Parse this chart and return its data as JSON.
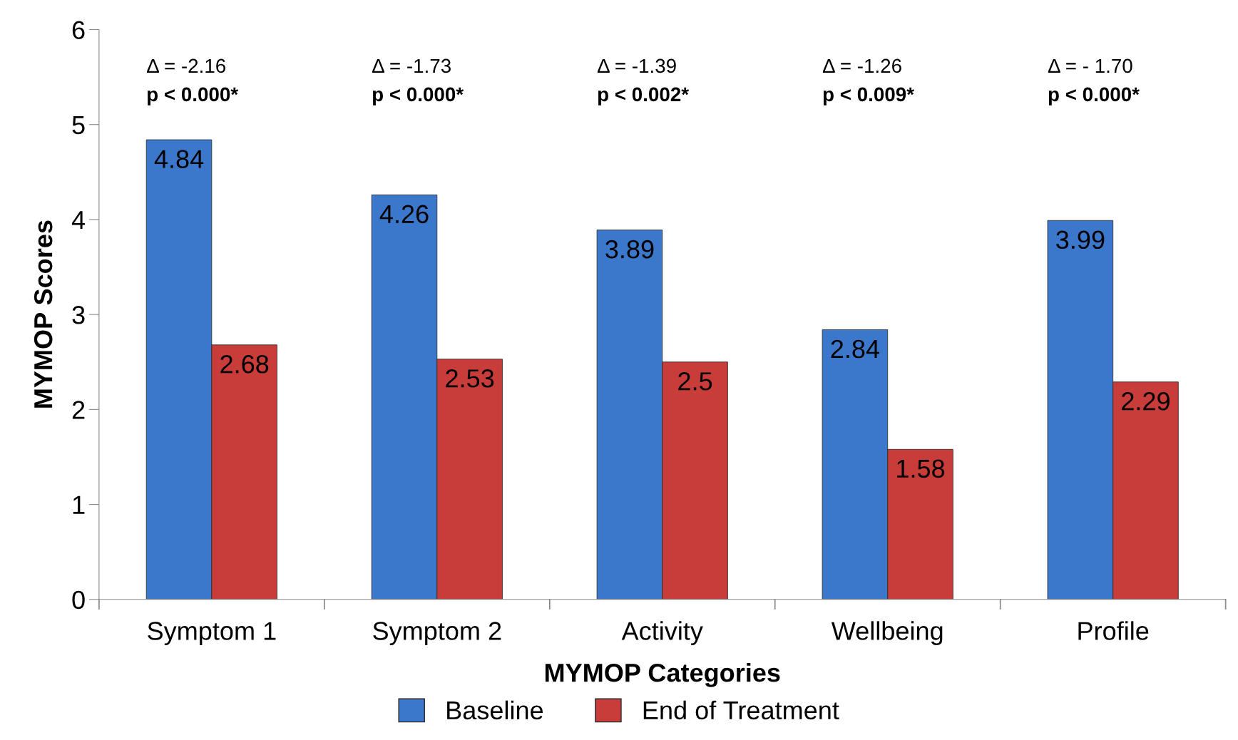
{
  "chart_data": {
    "type": "bar",
    "xlabel": "MYMOP Categories",
    "ylabel": "MYMOP Scores",
    "categories": [
      "Symptom 1",
      "Symptom 2",
      "Activity",
      "Wellbeing",
      "Profile"
    ],
    "series": [
      {
        "name": "Baseline",
        "color": "#3b78cc",
        "values": [
          4.84,
          4.26,
          3.89,
          2.84,
          3.99
        ]
      },
      {
        "name": "End of Treatment",
        "color": "#c83c3a",
        "values": [
          2.68,
          2.53,
          2.5,
          1.58,
          2.29
        ]
      }
    ],
    "ylim": [
      0,
      6
    ],
    "yticks": [
      0,
      1,
      2,
      3,
      4,
      5,
      6
    ],
    "data_labels": true,
    "grid": false,
    "legend": "bottom",
    "annotations": [
      "Δ = -2.16",
      "p < 0.000*",
      "Δ = -1.73",
      "p < 0.000*",
      "Δ = -1.39",
      "p < 0.002*",
      "Δ = -1.26",
      "p < 0.009*",
      "Δ = - 1.70",
      "p < 0.000*"
    ]
  }
}
